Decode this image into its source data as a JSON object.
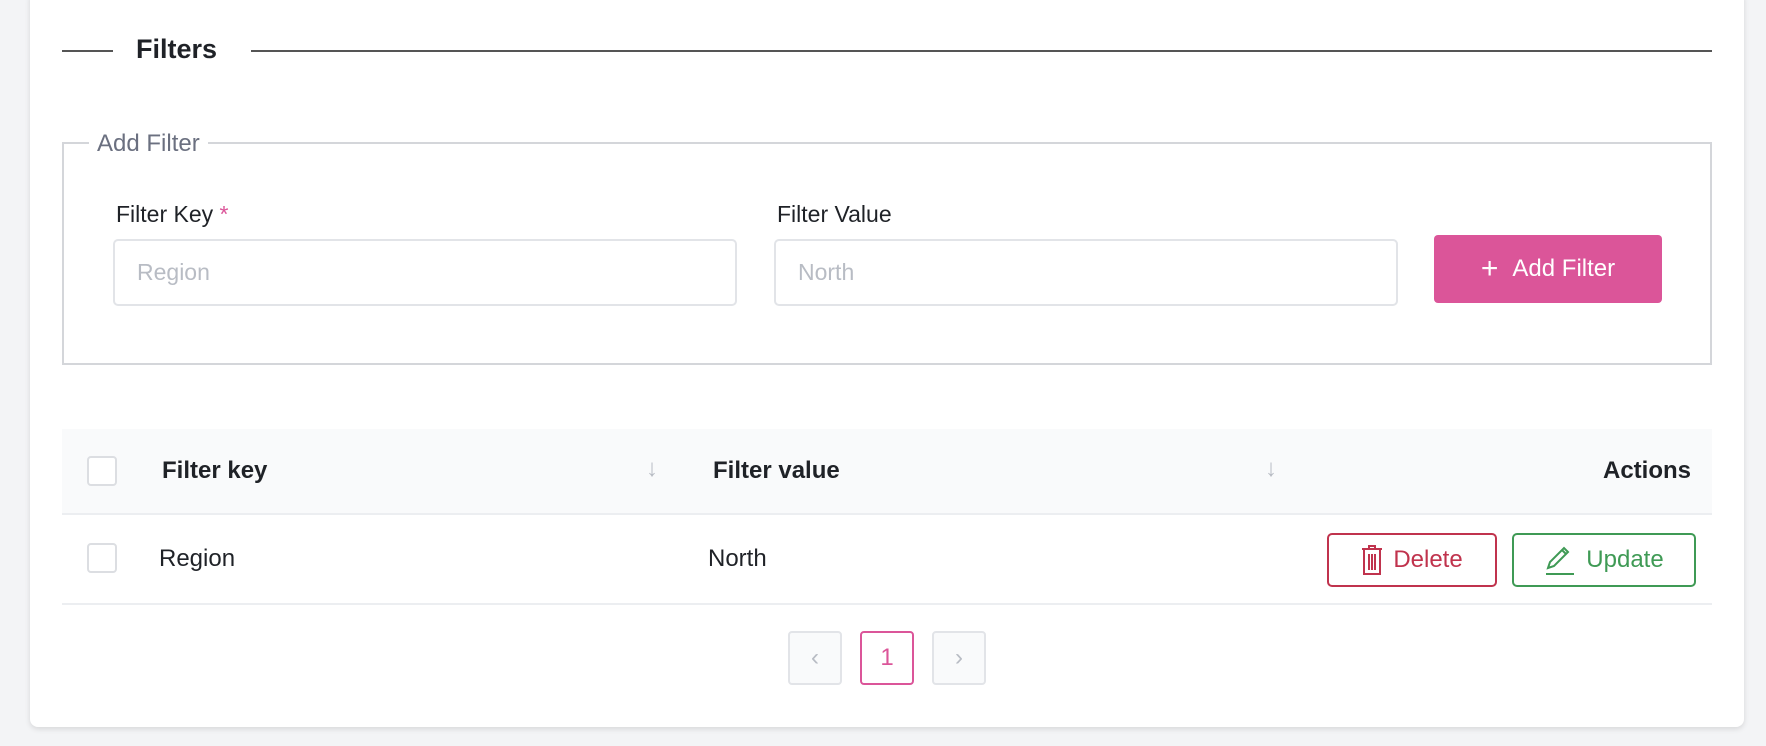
{
  "section_title": "Filters",
  "add_filter": {
    "legend": "Add Filter",
    "key_label": "Filter Key",
    "required_mark": "*",
    "key_placeholder": "Region",
    "value_label": "Filter Value",
    "value_placeholder": "North",
    "button_label": "Add Filter",
    "button_icon": "plus-icon"
  },
  "table": {
    "columns": [
      "Filter key",
      "Filter value",
      "Actions"
    ],
    "rows": [
      {
        "key": "Region",
        "value": "North"
      }
    ],
    "delete_label": "Delete",
    "update_label": "Update"
  },
  "pagination": {
    "current_page": "1"
  },
  "colors": {
    "accent": "#db5599",
    "delete": "#c0334d",
    "update": "#3f9a55"
  }
}
